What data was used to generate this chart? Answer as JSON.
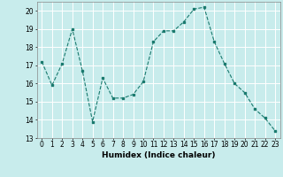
{
  "x": [
    0,
    1,
    2,
    3,
    4,
    5,
    6,
    7,
    8,
    9,
    10,
    11,
    12,
    13,
    14,
    15,
    16,
    17,
    18,
    19,
    20,
    21,
    22,
    23
  ],
  "y": [
    17.2,
    15.9,
    17.1,
    19.0,
    16.7,
    13.9,
    16.3,
    15.2,
    15.2,
    15.4,
    16.1,
    18.3,
    18.9,
    18.9,
    19.4,
    20.1,
    20.2,
    18.3,
    17.1,
    16.0,
    15.5,
    14.6,
    14.1,
    13.4
  ],
  "line_color": "#1a7a6e",
  "bg_color": "#c8ecec",
  "grid_color": "#ffffff",
  "xlabel": "Humidex (Indice chaleur)",
  "ylim": [
    13,
    20.5
  ],
  "xlim": [
    -0.5,
    23.5
  ],
  "yticks": [
    13,
    14,
    15,
    16,
    17,
    18,
    19,
    20
  ],
  "xticks": [
    0,
    1,
    2,
    3,
    4,
    5,
    6,
    7,
    8,
    9,
    10,
    11,
    12,
    13,
    14,
    15,
    16,
    17,
    18,
    19,
    20,
    21,
    22,
    23
  ],
  "tick_fontsize": 5.5,
  "xlabel_fontsize": 6.5
}
